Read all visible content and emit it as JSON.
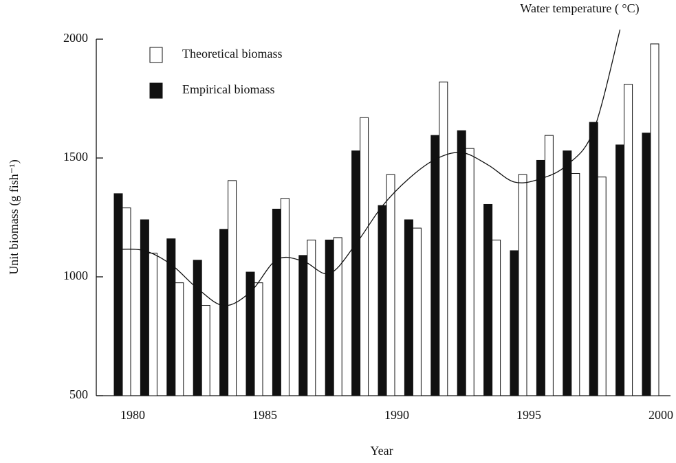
{
  "chart_data": {
    "type": "bar",
    "x_label": "Year",
    "y_label": "Unit biomass (g fish⁻¹)",
    "categories": [
      "1980",
      null,
      null,
      null,
      null,
      "1985",
      null,
      null,
      null,
      null,
      "1990",
      null,
      null,
      null,
      null,
      "1995",
      null,
      null,
      null,
      null,
      "2000"
    ],
    "series": [
      {
        "name": "Theoretical biomass",
        "color": "#ffffff",
        "values": [
          1290,
          1100,
          975,
          880,
          1405,
          975,
          1330,
          1155,
          1165,
          1670,
          1430,
          1205,
          1820,
          1540,
          1155,
          1430,
          1595,
          1435,
          1420,
          1810,
          1980
        ]
      },
      {
        "name": "Empirical biomass",
        "color": "#111111",
        "values": [
          1350,
          1240,
          1160,
          1070,
          1200,
          1020,
          1285,
          1090,
          1155,
          1530,
          1300,
          1240,
          1595,
          1615,
          1305,
          1110,
          1490,
          1530,
          1650,
          1555,
          1605
        ]
      },
      {
        "name": "Water temperature ( °C)",
        "type": "line",
        "color": "#111111",
        "values": [
          1116,
          1110,
          1052,
          951,
          879,
          936,
          1072,
          1066,
          1014,
          1139,
          1298,
          1413,
          1494,
          1523,
          1471,
          1399,
          1413,
          1471,
          1616,
          2040,
          null
        ]
      }
    ],
    "ylim": [
      500,
      2000
    ],
    "yticks": [
      500,
      1000,
      1500,
      2000
    ],
    "grid": false,
    "legend": "upper left"
  }
}
